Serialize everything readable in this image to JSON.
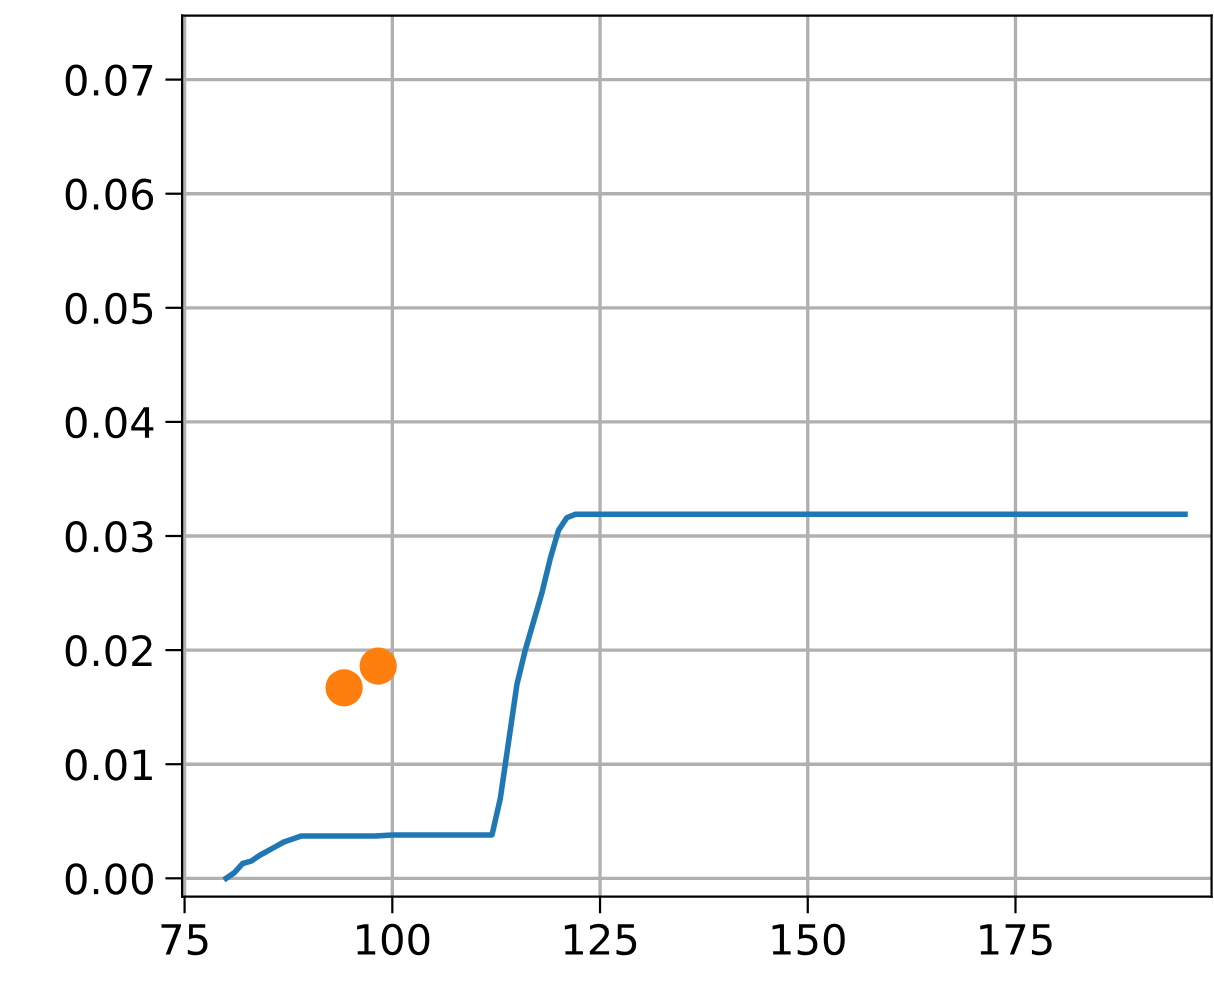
{
  "chart_data": {
    "type": "line",
    "grid": true,
    "legend": false,
    "xlim": [
      74.7,
      198.6
    ],
    "ylim": [
      -0.0016,
      0.0756
    ],
    "xticks": [
      75,
      100,
      125,
      150,
      175
    ],
    "yticks": [
      {
        "value": 0,
        "label": "0.00"
      },
      {
        "value": 0.01,
        "label": "0.01"
      },
      {
        "value": 0.02,
        "label": "0.02"
      },
      {
        "value": 0.03,
        "label": "0.03"
      },
      {
        "value": 0.04,
        "label": "0.04"
      },
      {
        "value": 0.05,
        "label": "0.05"
      },
      {
        "value": 0.06,
        "label": "0.06"
      },
      {
        "value": 0.07,
        "label": "0.07"
      }
    ],
    "series": [
      {
        "color": "#1f77b4",
        "x": [
          80,
          81,
          82,
          83,
          84,
          86,
          87,
          89,
          98,
          100,
          112,
          113,
          114,
          115,
          116,
          118,
          119,
          120,
          121,
          122,
          195.4
        ],
        "values": [
          0,
          0.0005,
          0.0013,
          0.0015,
          0.002,
          0.0028,
          0.0032,
          0.0037,
          0.0037,
          0.0038,
          0.0038,
          0.007,
          0.012,
          0.017,
          0.02,
          0.025,
          0.028,
          0.0305,
          0.0316,
          0.0319,
          0.0319
        ]
      },
      {
        "type": "scatter",
        "color": "#ff7f0e",
        "marker": "circle",
        "x": [
          94.2,
          98.3
        ],
        "values": [
          0.0167,
          0.0186
        ]
      }
    ]
  }
}
